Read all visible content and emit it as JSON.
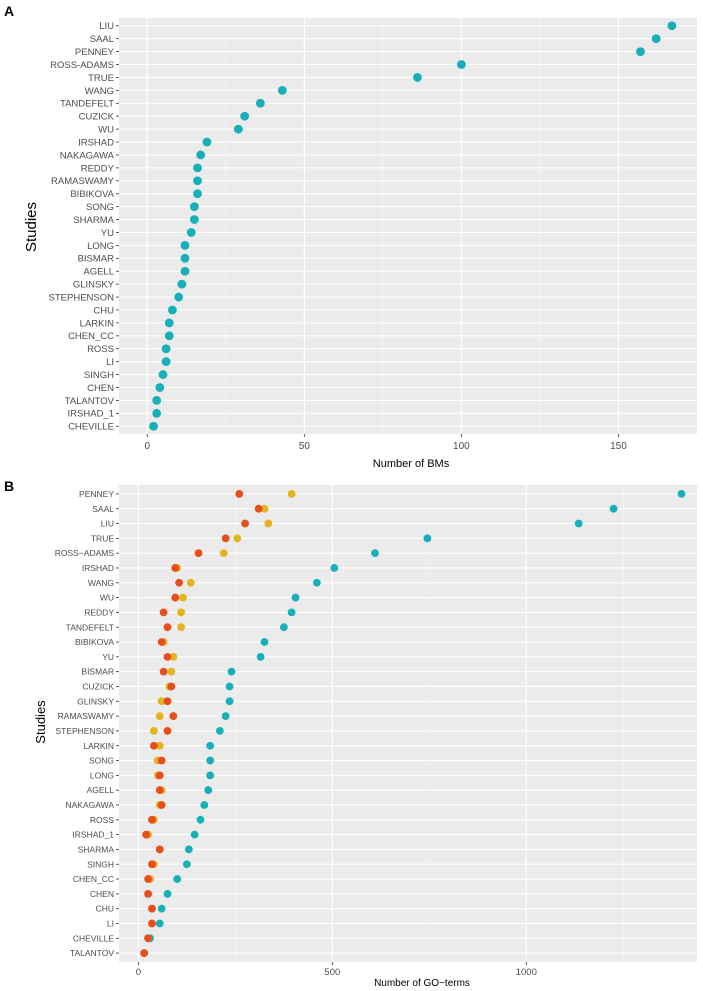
{
  "chart_data": [
    {
      "panel": "A",
      "type": "scatter",
      "orientation": "horizontal-dot",
      "xlabel": "Number of BMs",
      "ylabel": "Studies",
      "xlim": [
        -9,
        175
      ],
      "xticks": [
        0,
        50,
        100,
        150
      ],
      "xtick_labels": [
        "0",
        "50",
        "100",
        "150"
      ],
      "series": [
        {
          "name": "BMs",
          "color": "#17b0b8",
          "points": [
            {
              "study": "LIU",
              "value": 167
            },
            {
              "study": "SAAL",
              "value": 162
            },
            {
              "study": "PENNEY",
              "value": 157
            },
            {
              "study": "ROSS-ADAMS",
              "value": 100
            },
            {
              "study": "TRUE",
              "value": 86
            },
            {
              "study": "WANG",
              "value": 43
            },
            {
              "study": "TANDEFELT",
              "value": 36
            },
            {
              "study": "CUZICK",
              "value": 31
            },
            {
              "study": "WU",
              "value": 29
            },
            {
              "study": "IRSHAD",
              "value": 19
            },
            {
              "study": "NAKAGAWA",
              "value": 17
            },
            {
              "study": "REDDY",
              "value": 16
            },
            {
              "study": "RAMASWAMY",
              "value": 16
            },
            {
              "study": "BIBIKOVA",
              "value": 16
            },
            {
              "study": "SONG",
              "value": 15
            },
            {
              "study": "SHARMA",
              "value": 15
            },
            {
              "study": "YU",
              "value": 14
            },
            {
              "study": "LONG",
              "value": 12
            },
            {
              "study": "BISMAR",
              "value": 12
            },
            {
              "study": "AGELL",
              "value": 12
            },
            {
              "study": "GLINSKY",
              "value": 11
            },
            {
              "study": "STEPHENSON",
              "value": 10
            },
            {
              "study": "CHU",
              "value": 8
            },
            {
              "study": "LARKIN",
              "value": 7
            },
            {
              "study": "CHEN_CC",
              "value": 7
            },
            {
              "study": "ROSS",
              "value": 6
            },
            {
              "study": "LI",
              "value": 6
            },
            {
              "study": "SINGH",
              "value": 5
            },
            {
              "study": "CHEN",
              "value": 4
            },
            {
              "study": "TALANTOV",
              "value": 3
            },
            {
              "study": "IRSHAD_1",
              "value": 3
            },
            {
              "study": "CHEVILLE",
              "value": 2
            }
          ]
        }
      ]
    },
    {
      "panel": "B",
      "type": "scatter",
      "orientation": "horizontal-dot",
      "xlabel": "Number of GO−terms",
      "ylabel": "Studies",
      "xlim": [
        -50,
        1440
      ],
      "xticks": [
        0,
        500,
        1000
      ],
      "xtick_labels": [
        "0",
        "500",
        "1000"
      ],
      "categories": [
        "PENNEY",
        "SAAL",
        "LIU",
        "TRUE",
        "ROSS−ADAMS",
        "IRSHAD",
        "WANG",
        "WU",
        "REDDY",
        "TANDEFELT",
        "BIBIKOVA",
        "YU",
        "BISMAR",
        "CUZICK",
        "GLINSKY",
        "RAMASWAMY",
        "STEPHENSON",
        "LARKIN",
        "SONG",
        "LONG",
        "AGELL",
        "NAKAGAWA",
        "ROSS",
        "IRSHAD_1",
        "SHARMA",
        "SINGH",
        "CHEN_CC",
        "CHEN",
        "CHU",
        "LI",
        "CHEVILLE",
        "TALANTOV"
      ],
      "series": [
        {
          "name": "series-1",
          "color": "#17b0b8",
          "values": [
            1400,
            1225,
            1135,
            745,
            610,
            505,
            460,
            405,
            395,
            375,
            325,
            315,
            240,
            235,
            235,
            225,
            210,
            185,
            185,
            185,
            180,
            170,
            160,
            145,
            130,
            125,
            100,
            75,
            60,
            55,
            30,
            15
          ]
        },
        {
          "name": "series-2",
          "color": "#e5b31b",
          "values": [
            395,
            325,
            335,
            255,
            220,
            100,
            135,
            115,
            110,
            110,
            65,
            90,
            85,
            80,
            60,
            55,
            40,
            55,
            50,
            50,
            60,
            55,
            40,
            25,
            55,
            40,
            30,
            25,
            35,
            35,
            25,
            15
          ]
        },
        {
          "name": "series-3",
          "color": "#e84e1b",
          "values": [
            260,
            310,
            275,
            225,
            155,
            95,
            105,
            95,
            65,
            75,
            60,
            75,
            65,
            85,
            75,
            90,
            75,
            40,
            60,
            55,
            55,
            60,
            35,
            20,
            55,
            35,
            25,
            25,
            35,
            35,
            25,
            15
          ]
        }
      ]
    }
  ]
}
